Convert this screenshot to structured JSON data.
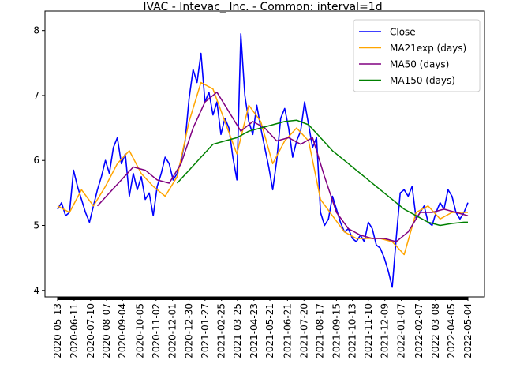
{
  "chart_data": {
    "type": "line",
    "title": "IVAC - Intevac_ Inc. - Common: interval=1d",
    "xlabel": "",
    "ylabel": "",
    "ylim": [
      3.9,
      8.3
    ],
    "yticks": [
      4,
      5,
      6,
      7,
      8
    ],
    "x_ticks": [
      "2020-05-13",
      "2020-06-11",
      "2020-07-10",
      "2020-08-07",
      "2020-09-04",
      "2020-10-05",
      "2020-11-02",
      "2020-12-01",
      "2020-12-30",
      "2021-01-27",
      "2021-02-25",
      "2021-03-25",
      "2021-04-23",
      "2021-05-21",
      "2021-06-21",
      "2021-07-20",
      "2021-08-17",
      "2021-09-15",
      "2021-10-13",
      "2021-11-10",
      "2021-12-09",
      "2022-01-07",
      "2022-02-07",
      "2022-03-08",
      "2022-04-05",
      "2022-05-04"
    ],
    "x_range": [
      "2020-05-13",
      "2022-05-04"
    ],
    "grid": false,
    "legend_position": "upper-right",
    "series": [
      {
        "name": "Close",
        "color": "#0000ff",
        "x": [
          "2020-05-13",
          "2020-05-20",
          "2020-05-27",
          "2020-06-03",
          "2020-06-10",
          "2020-06-17",
          "2020-06-24",
          "2020-07-01",
          "2020-07-08",
          "2020-07-15",
          "2020-07-22",
          "2020-07-29",
          "2020-08-05",
          "2020-08-12",
          "2020-08-19",
          "2020-08-26",
          "2020-09-02",
          "2020-09-09",
          "2020-09-16",
          "2020-09-23",
          "2020-09-30",
          "2020-10-07",
          "2020-10-14",
          "2020-10-21",
          "2020-10-28",
          "2020-11-04",
          "2020-11-11",
          "2020-11-18",
          "2020-11-25",
          "2020-12-02",
          "2020-12-09",
          "2020-12-16",
          "2020-12-23",
          "2020-12-30",
          "2021-01-06",
          "2021-01-13",
          "2021-01-20",
          "2021-01-27",
          "2021-02-03",
          "2021-02-10",
          "2021-02-17",
          "2021-02-24",
          "2021-03-03",
          "2021-03-10",
          "2021-03-17",
          "2021-03-24",
          "2021-03-31",
          "2021-04-07",
          "2021-04-14",
          "2021-04-21",
          "2021-04-28",
          "2021-05-05",
          "2021-05-12",
          "2021-05-19",
          "2021-05-26",
          "2021-06-02",
          "2021-06-09",
          "2021-06-16",
          "2021-06-23",
          "2021-06-30",
          "2021-07-07",
          "2021-07-14",
          "2021-07-21",
          "2021-07-28",
          "2021-08-04",
          "2021-08-11",
          "2021-08-18",
          "2021-08-25",
          "2021-09-01",
          "2021-09-08",
          "2021-09-15",
          "2021-09-22",
          "2021-09-29",
          "2021-10-06",
          "2021-10-13",
          "2021-10-20",
          "2021-10-27",
          "2021-11-03",
          "2021-11-10",
          "2021-11-17",
          "2021-11-24",
          "2021-12-01",
          "2021-12-08",
          "2021-12-15",
          "2021-12-22",
          "2021-12-29",
          "2022-01-05",
          "2022-01-12",
          "2022-01-19",
          "2022-01-26",
          "2022-02-02",
          "2022-02-09",
          "2022-02-16",
          "2022-02-23",
          "2022-03-02",
          "2022-03-09",
          "2022-03-16",
          "2022-03-23",
          "2022-03-30",
          "2022-04-06",
          "2022-04-13",
          "2022-04-20",
          "2022-04-27",
          "2022-05-04"
        ],
        "values": [
          5.25,
          5.35,
          5.15,
          5.2,
          5.85,
          5.6,
          5.4,
          5.2,
          5.05,
          5.3,
          5.55,
          5.75,
          6.0,
          5.8,
          6.2,
          6.35,
          5.95,
          6.1,
          5.45,
          5.8,
          5.55,
          5.75,
          5.4,
          5.5,
          5.15,
          5.6,
          5.8,
          6.05,
          5.95,
          5.7,
          5.8,
          6.0,
          6.3,
          6.95,
          7.4,
          7.2,
          7.65,
          6.9,
          7.05,
          6.7,
          6.9,
          6.4,
          6.65,
          6.5,
          6.05,
          5.7,
          7.95,
          7.0,
          6.6,
          6.4,
          6.85,
          6.5,
          6.2,
          5.9,
          5.55,
          6.0,
          6.65,
          6.8,
          6.5,
          6.05,
          6.3,
          6.45,
          6.9,
          6.55,
          6.2,
          6.35,
          5.2,
          5.0,
          5.1,
          5.45,
          5.25,
          5.05,
          4.9,
          4.95,
          4.8,
          4.75,
          4.85,
          4.75,
          5.05,
          4.95,
          4.7,
          4.65,
          4.5,
          4.3,
          4.05,
          4.8,
          5.5,
          5.55,
          5.45,
          5.6,
          5.1,
          5.2,
          5.3,
          5.05,
          5.0,
          5.2,
          5.35,
          5.25,
          5.55,
          5.45,
          5.2,
          5.1,
          5.2,
          5.35
        ]
      },
      {
        "name": "MA21exp (days)",
        "color": "#ffa500",
        "x": [
          "2020-05-13",
          "2020-06-03",
          "2020-06-24",
          "2020-07-15",
          "2020-08-05",
          "2020-08-26",
          "2020-09-16",
          "2020-10-07",
          "2020-10-28",
          "2020-11-18",
          "2020-12-09",
          "2020-12-30",
          "2021-01-20",
          "2021-02-10",
          "2021-03-03",
          "2021-03-24",
          "2021-04-14",
          "2021-05-05",
          "2021-05-26",
          "2021-06-16",
          "2021-07-07",
          "2021-07-28",
          "2021-08-18",
          "2021-09-08",
          "2021-09-29",
          "2021-10-20",
          "2021-11-10",
          "2021-12-01",
          "2021-12-22",
          "2022-01-12",
          "2022-02-02",
          "2022-02-23",
          "2022-03-16",
          "2022-04-06",
          "2022-04-27",
          "2022-05-04"
        ],
        "values": [
          5.3,
          5.2,
          5.55,
          5.3,
          5.6,
          5.95,
          6.15,
          5.8,
          5.6,
          5.45,
          5.75,
          6.6,
          7.2,
          7.1,
          6.6,
          6.1,
          6.85,
          6.6,
          5.95,
          6.3,
          6.5,
          6.3,
          5.4,
          5.15,
          4.9,
          4.8,
          4.8,
          4.8,
          4.75,
          4.55,
          5.2,
          5.3,
          5.1,
          5.2,
          5.2,
          5.2
        ]
      },
      {
        "name": "MA50 (days)",
        "color": "#800080",
        "x": [
          "2020-07-22",
          "2020-08-12",
          "2020-09-02",
          "2020-09-23",
          "2020-10-14",
          "2020-11-04",
          "2020-11-25",
          "2020-12-16",
          "2021-01-06",
          "2021-01-27",
          "2021-02-17",
          "2021-03-10",
          "2021-03-31",
          "2021-04-21",
          "2021-05-12",
          "2021-06-02",
          "2021-06-23",
          "2021-07-14",
          "2021-08-04",
          "2021-08-25",
          "2021-09-15",
          "2021-10-06",
          "2021-10-27",
          "2021-11-17",
          "2021-12-08",
          "2021-12-29",
          "2022-01-19",
          "2022-02-09",
          "2022-03-02",
          "2022-03-23",
          "2022-04-13",
          "2022-05-04"
        ],
        "values": [
          5.3,
          5.5,
          5.7,
          5.9,
          5.85,
          5.7,
          5.65,
          5.95,
          6.5,
          6.9,
          7.05,
          6.75,
          6.45,
          6.6,
          6.5,
          6.3,
          6.35,
          6.25,
          6.35,
          5.75,
          5.2,
          4.95,
          4.85,
          4.8,
          4.8,
          4.75,
          4.9,
          5.2,
          5.2,
          5.25,
          5.2,
          5.15
        ]
      },
      {
        "name": "MA150 (days)",
        "color": "#008000",
        "x": [
          "2020-12-09",
          "2020-12-30",
          "2021-01-20",
          "2021-02-10",
          "2021-03-03",
          "2021-03-24",
          "2021-04-14",
          "2021-05-05",
          "2021-05-26",
          "2021-06-16",
          "2021-07-07",
          "2021-07-28",
          "2021-08-18",
          "2021-09-08",
          "2021-09-29",
          "2021-10-20",
          "2021-11-10",
          "2021-12-01",
          "2021-12-22",
          "2022-01-12",
          "2022-02-02",
          "2022-02-23",
          "2022-03-16",
          "2022-04-06",
          "2022-04-27",
          "2022-05-04"
        ],
        "values": [
          5.65,
          5.85,
          6.05,
          6.25,
          6.3,
          6.35,
          6.45,
          6.5,
          6.55,
          6.6,
          6.62,
          6.55,
          6.35,
          6.15,
          6.0,
          5.85,
          5.7,
          5.55,
          5.4,
          5.25,
          5.15,
          5.05,
          5.0,
          5.03,
          5.05,
          5.05
        ]
      }
    ]
  }
}
